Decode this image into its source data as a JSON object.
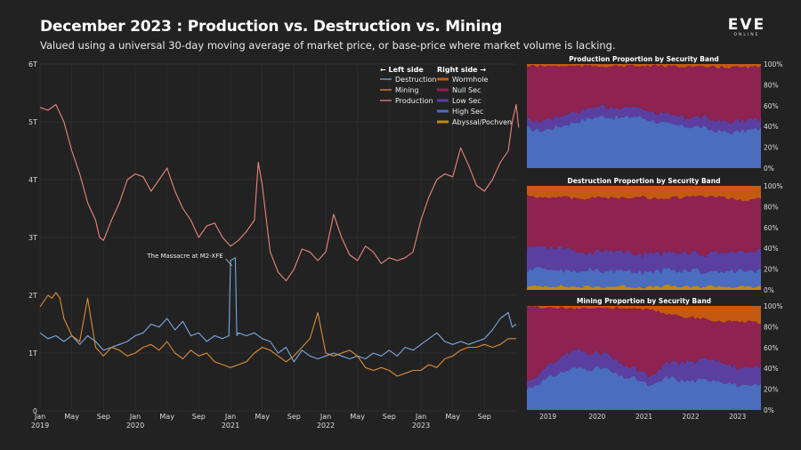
{
  "header": {
    "title": "December 2023 : Production vs. Destruction vs. Mining",
    "subtitle": "Valued using a universal 30-day moving average of market price, or base-price where market volume is lacking.",
    "logo_text": "EVE",
    "logo_subtext": "ONLINE"
  },
  "chart_data": [
    {
      "type": "line",
      "y_ticks": [
        "0",
        "1T",
        "2T",
        "3T",
        "4T",
        "5T",
        "6T"
      ],
      "ylim": [
        0,
        6
      ],
      "x_ticks": [
        {
          "label": "Jan",
          "sub": "2019",
          "t": 0
        },
        {
          "label": "May",
          "sub": "",
          "t": 4
        },
        {
          "label": "Sep",
          "sub": "",
          "t": 8
        },
        {
          "label": "Jan",
          "sub": "2020",
          "t": 12
        },
        {
          "label": "May",
          "sub": "",
          "t": 16
        },
        {
          "label": "Sep",
          "sub": "",
          "t": 20
        },
        {
          "label": "Jan",
          "sub": "2021",
          "t": 24
        },
        {
          "label": "May",
          "sub": "",
          "t": 28
        },
        {
          "label": "Sep",
          "sub": "",
          "t": 32
        },
        {
          "label": "Jan",
          "sub": "2022",
          "t": 36
        },
        {
          "label": "May",
          "sub": "",
          "t": 40
        },
        {
          "label": "Sep",
          "sub": "",
          "t": 44
        },
        {
          "label": "Jan",
          "sub": "2023",
          "t": 48
        },
        {
          "label": "May",
          "sub": "",
          "t": 52
        },
        {
          "label": "Sep",
          "sub": "",
          "t": 56
        }
      ],
      "xlim_months": [
        0,
        60
      ],
      "legend_left_header": "← Left side",
      "legend_right_header": "Right side →",
      "annotation": {
        "text": "The Massacre at M2-XFE",
        "t": 24.3,
        "y": 2.6
      },
      "series": [
        {
          "name": "Destruction",
          "color": "#7ba7e0",
          "points": [
            [
              0,
              1.35
            ],
            [
              1,
              1.25
            ],
            [
              2,
              1.3
            ],
            [
              3,
              1.2
            ],
            [
              4,
              1.3
            ],
            [
              5,
              1.15
            ],
            [
              6,
              1.3
            ],
            [
              7,
              1.2
            ],
            [
              8,
              1.05
            ],
            [
              9,
              1.1
            ],
            [
              10,
              1.15
            ],
            [
              11,
              1.2
            ],
            [
              12,
              1.3
            ],
            [
              13,
              1.35
            ],
            [
              14,
              1.5
            ],
            [
              15,
              1.45
            ],
            [
              16,
              1.6
            ],
            [
              17,
              1.4
            ],
            [
              18,
              1.55
            ],
            [
              19,
              1.3
            ],
            [
              20,
              1.35
            ],
            [
              21,
              1.2
            ],
            [
              22,
              1.3
            ],
            [
              23,
              1.25
            ],
            [
              23.8,
              1.3
            ],
            [
              24,
              2.6
            ],
            [
              24.6,
              2.65
            ],
            [
              24.8,
              1.3
            ],
            [
              25,
              1.35
            ],
            [
              26,
              1.3
            ],
            [
              27,
              1.35
            ],
            [
              28,
              1.25
            ],
            [
              29,
              1.2
            ],
            [
              30,
              1.0
            ],
            [
              31,
              1.1
            ],
            [
              32,
              0.85
            ],
            [
              33,
              1.05
            ],
            [
              34,
              0.95
            ],
            [
              35,
              0.9
            ],
            [
              36,
              0.95
            ],
            [
              37,
              1.0
            ],
            [
              38,
              0.95
            ],
            [
              39,
              0.9
            ],
            [
              40,
              0.95
            ],
            [
              41,
              0.9
            ],
            [
              42,
              1.0
            ],
            [
              43,
              0.95
            ],
            [
              44,
              1.05
            ],
            [
              45,
              0.95
            ],
            [
              46,
              1.1
            ],
            [
              47,
              1.05
            ],
            [
              48,
              1.15
            ],
            [
              49,
              1.25
            ],
            [
              50,
              1.35
            ],
            [
              51,
              1.2
            ],
            [
              52,
              1.15
            ],
            [
              53,
              1.2
            ],
            [
              54,
              1.15
            ],
            [
              55,
              1.2
            ],
            [
              56,
              1.25
            ],
            [
              57,
              1.4
            ],
            [
              58,
              1.6
            ],
            [
              59,
              1.7
            ],
            [
              59.5,
              1.45
            ],
            [
              60,
              1.5
            ]
          ]
        },
        {
          "name": "Mining",
          "color": "#d98b3a",
          "points": [
            [
              0,
              1.8
            ],
            [
              1,
              2.0
            ],
            [
              1.5,
              1.95
            ],
            [
              2,
              2.05
            ],
            [
              2.5,
              1.95
            ],
            [
              3,
              1.6
            ],
            [
              4,
              1.3
            ],
            [
              5,
              1.2
            ],
            [
              6,
              1.95
            ],
            [
              7,
              1.1
            ],
            [
              8,
              0.95
            ],
            [
              9,
              1.1
            ],
            [
              10,
              1.05
            ],
            [
              11,
              0.95
            ],
            [
              12,
              1.0
            ],
            [
              13,
              1.1
            ],
            [
              14,
              1.15
            ],
            [
              15,
              1.05
            ],
            [
              16,
              1.2
            ],
            [
              17,
              1.0
            ],
            [
              18,
              0.9
            ],
            [
              19,
              1.05
            ],
            [
              20,
              0.95
            ],
            [
              21,
              1.0
            ],
            [
              22,
              0.85
            ],
            [
              23,
              0.8
            ],
            [
              24,
              0.75
            ],
            [
              25,
              0.8
            ],
            [
              26,
              0.85
            ],
            [
              27,
              1.0
            ],
            [
              28,
              1.1
            ],
            [
              29,
              1.05
            ],
            [
              30,
              0.95
            ],
            [
              31,
              0.85
            ],
            [
              32,
              0.95
            ],
            [
              33,
              1.1
            ],
            [
              34,
              1.25
            ],
            [
              35,
              1.7
            ],
            [
              36,
              1.0
            ],
            [
              37,
              0.95
            ],
            [
              38,
              1.0
            ],
            [
              39,
              1.05
            ],
            [
              40,
              0.95
            ],
            [
              41,
              0.75
            ],
            [
              42,
              0.7
            ],
            [
              43,
              0.75
            ],
            [
              44,
              0.7
            ],
            [
              45,
              0.6
            ],
            [
              46,
              0.65
            ],
            [
              47,
              0.7
            ],
            [
              48,
              0.7
            ],
            [
              49,
              0.8
            ],
            [
              50,
              0.75
            ],
            [
              51,
              0.9
            ],
            [
              52,
              0.95
            ],
            [
              53,
              1.05
            ],
            [
              54,
              1.1
            ],
            [
              55,
              1.1
            ],
            [
              56,
              1.15
            ],
            [
              57,
              1.1
            ],
            [
              58,
              1.15
            ],
            [
              59,
              1.25
            ],
            [
              60,
              1.25
            ]
          ]
        },
        {
          "name": "Production",
          "color": "#e8867a",
          "points": [
            [
              0,
              5.25
            ],
            [
              1,
              5.2
            ],
            [
              2,
              5.3
            ],
            [
              3,
              5.0
            ],
            [
              4,
              4.5
            ],
            [
              5,
              4.1
            ],
            [
              6,
              3.6
            ],
            [
              7,
              3.3
            ],
            [
              7.5,
              3.0
            ],
            [
              8,
              2.95
            ],
            [
              9,
              3.3
            ],
            [
              10,
              3.6
            ],
            [
              11,
              4.0
            ],
            [
              12,
              4.1
            ],
            [
              13,
              4.05
            ],
            [
              14,
              3.8
            ],
            [
              15,
              4.0
            ],
            [
              16,
              4.2
            ],
            [
              17,
              3.8
            ],
            [
              18,
              3.5
            ],
            [
              19,
              3.3
            ],
            [
              20,
              3.0
            ],
            [
              21,
              3.2
            ],
            [
              22,
              3.25
            ],
            [
              23,
              3.0
            ],
            [
              24,
              2.85
            ],
            [
              25,
              2.95
            ],
            [
              26,
              3.1
            ],
            [
              27,
              3.3
            ],
            [
              27.5,
              4.3
            ],
            [
              28,
              3.9
            ],
            [
              29,
              2.75
            ],
            [
              30,
              2.4
            ],
            [
              31,
              2.25
            ],
            [
              32,
              2.45
            ],
            [
              33,
              2.8
            ],
            [
              34,
              2.75
            ],
            [
              35,
              2.6
            ],
            [
              36,
              2.75
            ],
            [
              37,
              3.4
            ],
            [
              38,
              3.0
            ],
            [
              39,
              2.7
            ],
            [
              40,
              2.6
            ],
            [
              41,
              2.85
            ],
            [
              42,
              2.75
            ],
            [
              43,
              2.55
            ],
            [
              44,
              2.65
            ],
            [
              45,
              2.6
            ],
            [
              46,
              2.65
            ],
            [
              47,
              2.75
            ],
            [
              48,
              3.3
            ],
            [
              49,
              3.7
            ],
            [
              50,
              4.0
            ],
            [
              51,
              4.1
            ],
            [
              52,
              4.05
            ],
            [
              53,
              4.55
            ],
            [
              54,
              4.25
            ],
            [
              55,
              3.9
            ],
            [
              56,
              3.8
            ],
            [
              57,
              4.0
            ],
            [
              58,
              4.3
            ],
            [
              59,
              4.5
            ],
            [
              59.5,
              5.0
            ],
            [
              60,
              5.3
            ],
            [
              60.3,
              4.9
            ]
          ]
        }
      ]
    },
    {
      "type": "area",
      "title": "Production Proportion by Security Band",
      "x_ticks": [
        "2019",
        "2020",
        "2021",
        "2022",
        "2023"
      ],
      "y_ticks": [
        "0%",
        "20%",
        "40%",
        "60%",
        "80%",
        "100%"
      ],
      "ylim": [
        0,
        100
      ],
      "high_sec": [
        38,
        36,
        40,
        44,
        48,
        50,
        48,
        50,
        46,
        42,
        40,
        40,
        36,
        34,
        36,
        38
      ],
      "low_sec": [
        8,
        10,
        10,
        10,
        10,
        10,
        9,
        9,
        9,
        9,
        9,
        9,
        10,
        10,
        10,
        10
      ],
      "wormhole": [
        2,
        2,
        2,
        2,
        2,
        2,
        2,
        2,
        2,
        2,
        2,
        3,
        3,
        3,
        3,
        3
      ]
    },
    {
      "type": "area",
      "title": "Destruction Proportion by Security Band",
      "x_ticks": [
        "2019",
        "2020",
        "2021",
        "2022",
        "2023"
      ],
      "y_ticks": [
        "0%",
        "20%",
        "40%",
        "60%",
        "80%",
        "100%"
      ],
      "ylim": [
        0,
        100
      ],
      "abyssal": [
        3,
        4,
        4,
        3,
        3,
        3,
        4,
        3,
        3,
        4,
        3,
        3,
        4,
        3,
        3,
        3
      ],
      "high_sec": [
        15,
        18,
        16,
        14,
        16,
        15,
        16,
        14,
        16,
        15,
        16,
        15,
        14,
        16,
        14,
        16
      ],
      "low_sec": [
        22,
        20,
        22,
        20,
        16,
        20,
        18,
        18,
        18,
        16,
        18,
        16,
        18,
        18,
        18,
        20
      ],
      "wormhole": [
        10,
        11,
        10,
        12,
        12,
        11,
        12,
        10,
        12,
        12,
        11,
        10,
        11,
        12,
        14,
        12
      ]
    },
    {
      "type": "area",
      "title": "Mining Proportion by Security Band",
      "x_ticks": [
        "2019",
        "2020",
        "2021",
        "2022",
        "2023"
      ],
      "y_ticks": [
        "0%",
        "20%",
        "40%",
        "60%",
        "80%",
        "100%"
      ],
      "ylim": [
        0,
        100
      ],
      "high_sec": [
        20,
        28,
        35,
        40,
        40,
        40,
        32,
        30,
        22,
        32,
        28,
        28,
        30,
        26,
        22,
        24
      ],
      "low_sec": [
        6,
        10,
        14,
        18,
        16,
        14,
        12,
        10,
        8,
        14,
        18,
        20,
        20,
        18,
        16,
        18
      ],
      "wormhole": [
        1,
        1,
        2,
        2,
        2,
        2,
        2,
        3,
        4,
        8,
        10,
        12,
        14,
        15,
        15,
        16
      ]
    }
  ],
  "legend": {
    "left": [
      "Destruction",
      "Mining",
      "Production"
    ],
    "right": [
      {
        "name": "Wormhole",
        "color": "#c45a12"
      },
      {
        "name": "Null Sec",
        "color": "#8e2250"
      },
      {
        "name": "Low Sec",
        "color": "#5b3fa0"
      },
      {
        "name": "High Sec",
        "color": "#4a6dc0"
      },
      {
        "name": "Abyssal/Pochven",
        "color": "#c08a10"
      }
    ]
  }
}
